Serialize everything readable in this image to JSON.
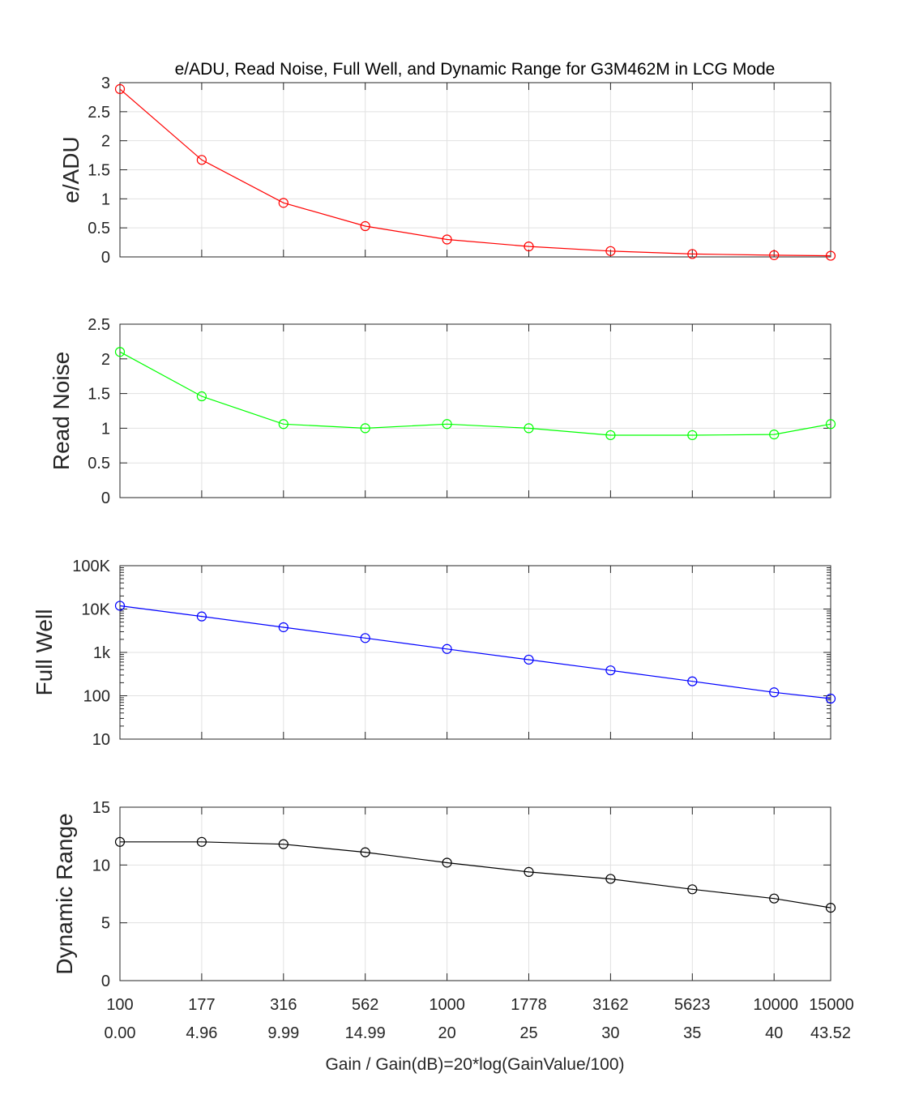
{
  "title": "e/ADU, Read Noise, Full Well, and Dynamic Range for G3M462M in LCG Mode",
  "xlabel": "Gain / Gain(dB)=20*log(GainValue/100)",
  "chart_data": [
    {
      "type": "line",
      "ylabel": "e/ADU",
      "color": "#ff0000",
      "yscale": "linear",
      "ylim": [
        0,
        3
      ],
      "yticks": [
        0,
        0.5,
        1,
        1.5,
        2,
        2.5,
        3
      ],
      "ytick_labels": [
        "0",
        "0.5",
        "1",
        "1.5",
        "2",
        "2.5",
        "3"
      ],
      "grid": true,
      "x": [
        100,
        177,
        316,
        562,
        1000,
        1778,
        3162,
        5623,
        10000,
        15000
      ],
      "values": [
        2.89,
        1.67,
        0.93,
        0.53,
        0.3,
        0.18,
        0.1,
        0.05,
        0.03,
        0.02
      ]
    },
    {
      "type": "line",
      "ylabel": "Read Noise",
      "color": "#00ff00",
      "yscale": "linear",
      "ylim": [
        0,
        2.5
      ],
      "yticks": [
        0,
        0.5,
        1,
        1.5,
        2,
        2.5
      ],
      "ytick_labels": [
        "0",
        "0.5",
        "1",
        "1.5",
        "2",
        "2.5"
      ],
      "grid": true,
      "x": [
        100,
        177,
        316,
        562,
        1000,
        1778,
        3162,
        5623,
        10000,
        15000
      ],
      "values": [
        2.1,
        1.46,
        1.06,
        1.0,
        1.06,
        1.0,
        0.9,
        0.9,
        0.91,
        1.06
      ]
    },
    {
      "type": "line",
      "ylabel": "Full Well",
      "color": "#0000ff",
      "yscale": "log",
      "ylim": [
        10,
        100000
      ],
      "yticks": [
        10,
        100,
        1000,
        10000,
        100000
      ],
      "ytick_labels": [
        "10",
        "100",
        "1k",
        "10K",
        "100K"
      ],
      "grid": true,
      "x": [
        100,
        177,
        316,
        562,
        1000,
        1778,
        3162,
        5623,
        10000,
        15000
      ],
      "values": [
        11900,
        6750,
        3800,
        2140,
        1200,
        680,
        385,
        215,
        120,
        86
      ]
    },
    {
      "type": "line",
      "ylabel": "Dynamic Range",
      "color": "#000000",
      "yscale": "linear",
      "ylim": [
        0,
        15
      ],
      "yticks": [
        0,
        5,
        10,
        15
      ],
      "ytick_labels": [
        "0",
        "5",
        "10",
        "15"
      ],
      "grid": true,
      "x": [
        100,
        177,
        316,
        562,
        1000,
        1778,
        3162,
        5623,
        10000,
        15000
      ],
      "values": [
        12.0,
        12.0,
        11.8,
        11.1,
        10.2,
        9.4,
        8.8,
        7.9,
        7.1,
        6.3
      ]
    }
  ],
  "xticks": {
    "gain": [
      "100",
      "177",
      "316",
      "562",
      "1000",
      "1778",
      "3162",
      "5623",
      "10000",
      "15000"
    ],
    "gain_db": [
      "0.00",
      "4.96",
      "9.99",
      "14.99",
      "20",
      "25",
      "30",
      "35",
      "40",
      "43.52"
    ]
  }
}
